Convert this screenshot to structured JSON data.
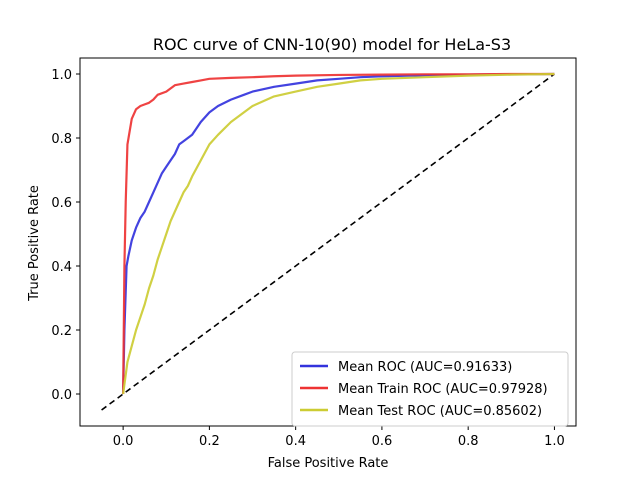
{
  "chart_data": {
    "type": "line",
    "title": "ROC curve of CNN-10(90) model for HeLa-S3",
    "xlabel": "False Positive Rate",
    "ylabel": "True Positive Rate",
    "xlim": [
      -0.1,
      1.05
    ],
    "ylim": [
      -0.1,
      1.05
    ],
    "x_ticks": [
      "0.0",
      "0.2",
      "0.4",
      "0.6",
      "0.8",
      "1.0"
    ],
    "y_ticks": [
      "0.0",
      "0.2",
      "0.4",
      "0.6",
      "0.8",
      "1.0"
    ],
    "grid": false,
    "legend_position": "lower-right",
    "series": [
      {
        "name": "Mean ROC (AUC=0.91633)",
        "color": "#3333dd",
        "style": "solid",
        "x": [
          0,
          0.003,
          0.008,
          0.012,
          0.02,
          0.03,
          0.04,
          0.05,
          0.06,
          0.07,
          0.08,
          0.09,
          0.1,
          0.11,
          0.12,
          0.13,
          0.14,
          0.15,
          0.16,
          0.18,
          0.2,
          0.22,
          0.25,
          0.28,
          0.3,
          0.35,
          0.4,
          0.45,
          0.5,
          0.55,
          0.6,
          0.7,
          0.8,
          0.9,
          1.0
        ],
        "y": [
          0,
          0.2,
          0.4,
          0.43,
          0.48,
          0.52,
          0.55,
          0.57,
          0.6,
          0.63,
          0.66,
          0.69,
          0.71,
          0.73,
          0.75,
          0.78,
          0.79,
          0.8,
          0.81,
          0.85,
          0.88,
          0.9,
          0.92,
          0.935,
          0.945,
          0.96,
          0.97,
          0.98,
          0.985,
          0.99,
          0.993,
          0.996,
          0.998,
          0.999,
          1.0
        ]
      },
      {
        "name": "Mean Train ROC (AUC=0.97928)",
        "color": "#ee3333",
        "style": "solid",
        "x": [
          0,
          0.003,
          0.006,
          0.01,
          0.015,
          0.02,
          0.03,
          0.04,
          0.05,
          0.06,
          0.07,
          0.08,
          0.1,
          0.12,
          0.14,
          0.16,
          0.18,
          0.2,
          0.25,
          0.3,
          0.35,
          0.4,
          0.5,
          0.6,
          0.7,
          0.8,
          0.9,
          1.0
        ],
        "y": [
          0,
          0.4,
          0.6,
          0.78,
          0.82,
          0.86,
          0.89,
          0.9,
          0.905,
          0.91,
          0.92,
          0.935,
          0.945,
          0.965,
          0.97,
          0.975,
          0.98,
          0.985,
          0.988,
          0.99,
          0.993,
          0.995,
          0.997,
          0.998,
          0.999,
          0.999,
          1.0,
          1.0
        ]
      },
      {
        "name": "Mean Test ROC (AUC=0.85602)",
        "color": "#cccc33",
        "style": "solid",
        "x": [
          0,
          0.005,
          0.01,
          0.02,
          0.03,
          0.04,
          0.05,
          0.06,
          0.07,
          0.08,
          0.09,
          0.1,
          0.11,
          0.12,
          0.13,
          0.14,
          0.15,
          0.16,
          0.18,
          0.2,
          0.22,
          0.25,
          0.28,
          0.3,
          0.35,
          0.4,
          0.45,
          0.5,
          0.55,
          0.6,
          0.7,
          0.8,
          0.9,
          1.0
        ],
        "y": [
          0,
          0.05,
          0.1,
          0.15,
          0.2,
          0.24,
          0.28,
          0.33,
          0.37,
          0.42,
          0.46,
          0.5,
          0.54,
          0.57,
          0.6,
          0.63,
          0.65,
          0.68,
          0.73,
          0.78,
          0.81,
          0.85,
          0.88,
          0.9,
          0.93,
          0.945,
          0.96,
          0.97,
          0.98,
          0.985,
          0.99,
          0.995,
          0.998,
          1.0
        ]
      },
      {
        "name": "",
        "color": "#000000",
        "style": "dashed",
        "x": [
          -0.05,
          1.0
        ],
        "y": [
          -0.05,
          1.0
        ]
      }
    ]
  }
}
